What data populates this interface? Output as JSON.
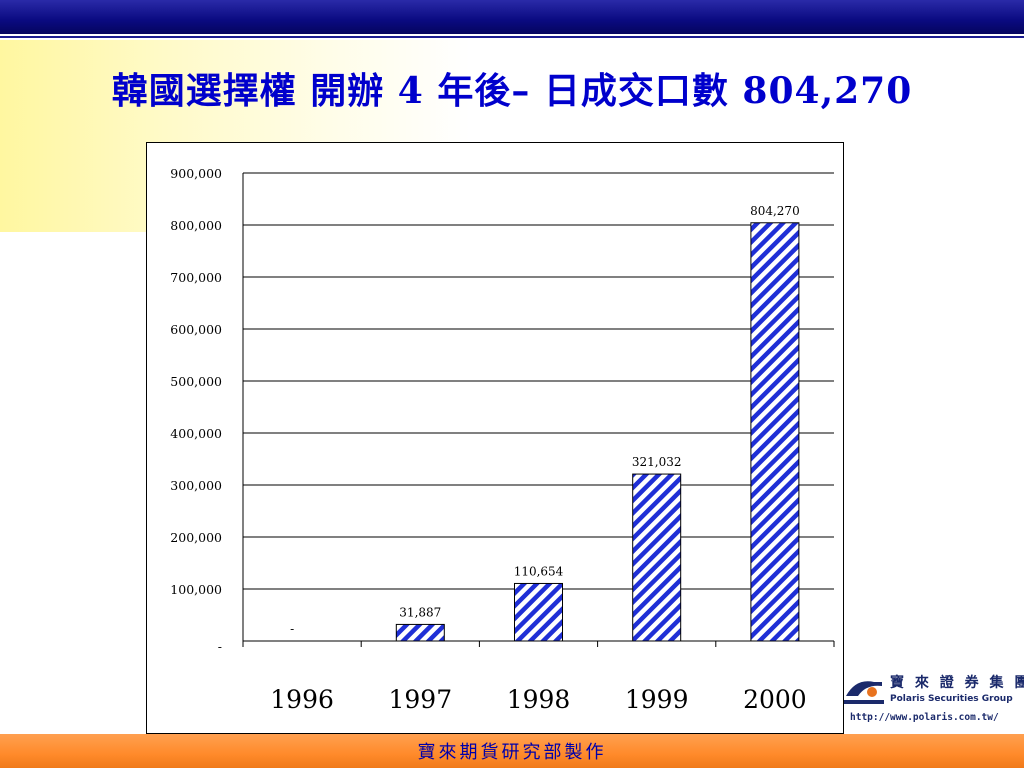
{
  "slide": {
    "title": "韓國選擇權 開辦 4 年後– 日成交口數 804,270",
    "footer": "寶來期貨研究部製作"
  },
  "logo": {
    "name_cn": "寶 來 證 券 集 團",
    "name_en": "Polaris Securities Group",
    "url": "http://www.polaris.com.tw/"
  },
  "colors": {
    "title": "#0000cc",
    "bar_hatch": "#1f2fd6",
    "top_bar": "#0a0a80",
    "footer_bar": "#ff8a2a"
  },
  "chart_data": {
    "type": "bar",
    "categories": [
      "1996",
      "1997",
      "1998",
      "1999",
      "2000"
    ],
    "values": [
      0,
      31887,
      110654,
      321032,
      804270
    ],
    "data_labels": [
      "-",
      "31,887",
      "110,654",
      "321,032",
      "804,270"
    ],
    "ylim": [
      0,
      900000
    ],
    "yticks": [
      0,
      100000,
      200000,
      300000,
      400000,
      500000,
      600000,
      700000,
      800000,
      900000
    ],
    "ytick_labels": [
      "-",
      "100,000",
      "200,000",
      "300,000",
      "400,000",
      "500,000",
      "600,000",
      "700,000",
      "800,000",
      "900,000"
    ],
    "grid": true,
    "pattern": "diagonal-hatch"
  }
}
